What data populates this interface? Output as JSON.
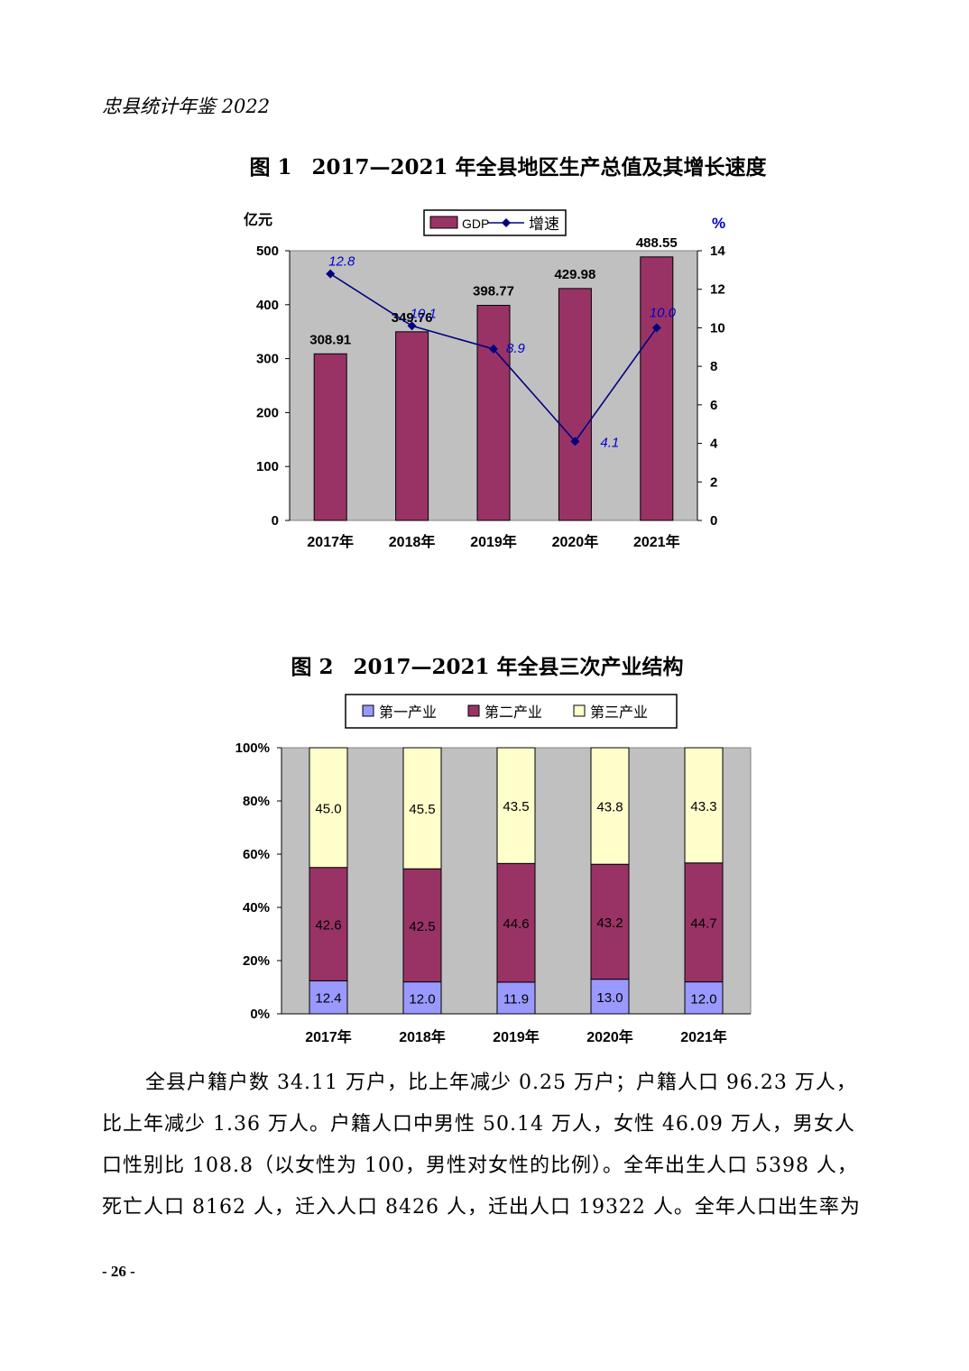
{
  "header": "忠县统计年鉴 2022",
  "figure1": {
    "label": "图 1",
    "title": "2017—2021 年全县地区生产总值及其增长速度",
    "left_unit": "亿元",
    "right_unit": "%",
    "legend_gdp": "GDP",
    "legend_growth": "增速",
    "left_ticks": [
      "0",
      "100",
      "200",
      "300",
      "400",
      "500"
    ],
    "right_ticks": [
      "0",
      "2",
      "4",
      "6",
      "8",
      "10",
      "12",
      "14"
    ],
    "categories": [
      "2017年",
      "2018年",
      "2019年",
      "2020年",
      "2021年"
    ],
    "gdp_labels": [
      "308.91",
      "349.76",
      "398.77",
      "429.98",
      "488.55"
    ],
    "growth_labels": [
      "12.8",
      "10.1",
      "8.9",
      "4.1",
      "10.0"
    ]
  },
  "figure2": {
    "label": "图 2",
    "title": "2017—2021 年全县三次产业结构",
    "legend": [
      "第一产业",
      "第二产业",
      "第三产业"
    ],
    "y_ticks": [
      "0%",
      "20%",
      "40%",
      "60%",
      "80%",
      "100%"
    ],
    "categories": [
      "2017年",
      "2018年",
      "2019年",
      "2020年",
      "2021年"
    ],
    "primary_labels": [
      "12.4",
      "12.0",
      "11.9",
      "13.0",
      "12.0"
    ],
    "secondary_labels": [
      "42.6",
      "42.5",
      "44.6",
      "43.2",
      "44.7"
    ],
    "tertiary_labels": [
      "45.0",
      "45.5",
      "43.5",
      "43.8",
      "43.3"
    ]
  },
  "chart_data": [
    {
      "type": "bar",
      "title": "2017—2021 年全县地区生产总值及其增长速度",
      "categories": [
        "2017年",
        "2018年",
        "2019年",
        "2020年",
        "2021年"
      ],
      "ylabel": "亿元",
      "y2label": "%",
      "ylim": [
        0,
        500
      ],
      "y2lim": [
        0,
        14
      ],
      "grid": false,
      "legend": "top-center",
      "series": [
        {
          "name": "GDP",
          "type": "bar",
          "axis": "left",
          "color": "#993366",
          "values": [
            308.91,
            349.76,
            398.77,
            429.98,
            488.55
          ]
        },
        {
          "name": "增速",
          "type": "line",
          "axis": "right",
          "color": "#000080",
          "values": [
            12.8,
            10.1,
            8.9,
            4.1,
            10.0
          ]
        }
      ]
    },
    {
      "type": "bar",
      "stacked": true,
      "title": "2017—2021 年全县三次产业结构",
      "categories": [
        "2017年",
        "2018年",
        "2019年",
        "2020年",
        "2021年"
      ],
      "ylim": [
        0,
        100
      ],
      "grid": false,
      "legend": "top-center",
      "series": [
        {
          "name": "第一产业",
          "color": "#9999FF",
          "values": [
            12.4,
            12.0,
            11.9,
            13.0,
            12.0
          ]
        },
        {
          "name": "第二产业",
          "color": "#993366",
          "values": [
            42.6,
            42.5,
            44.6,
            43.2,
            44.7
          ]
        },
        {
          "name": "第三产业",
          "color": "#FFFFCC",
          "values": [
            45.0,
            45.5,
            43.5,
            43.8,
            43.3
          ]
        }
      ]
    }
  ],
  "paragraph": [
    "全县户籍户数 34.11 万户，比上年减少 0.25 万户；户籍人口 96.23 万人，",
    "比上年减少 1.36 万人。户籍人口中男性 50.14 万人，女性 46.09 万人，男女人",
    "口性别比 108.8（以女性为 100，男性对女性的比例）。全年出生人口 5398 人，",
    "死亡人口 8162 人，迁入人口 8426 人，迁出人口 19322 人。全年人口出生率为"
  ],
  "page_number": "- 26 -"
}
